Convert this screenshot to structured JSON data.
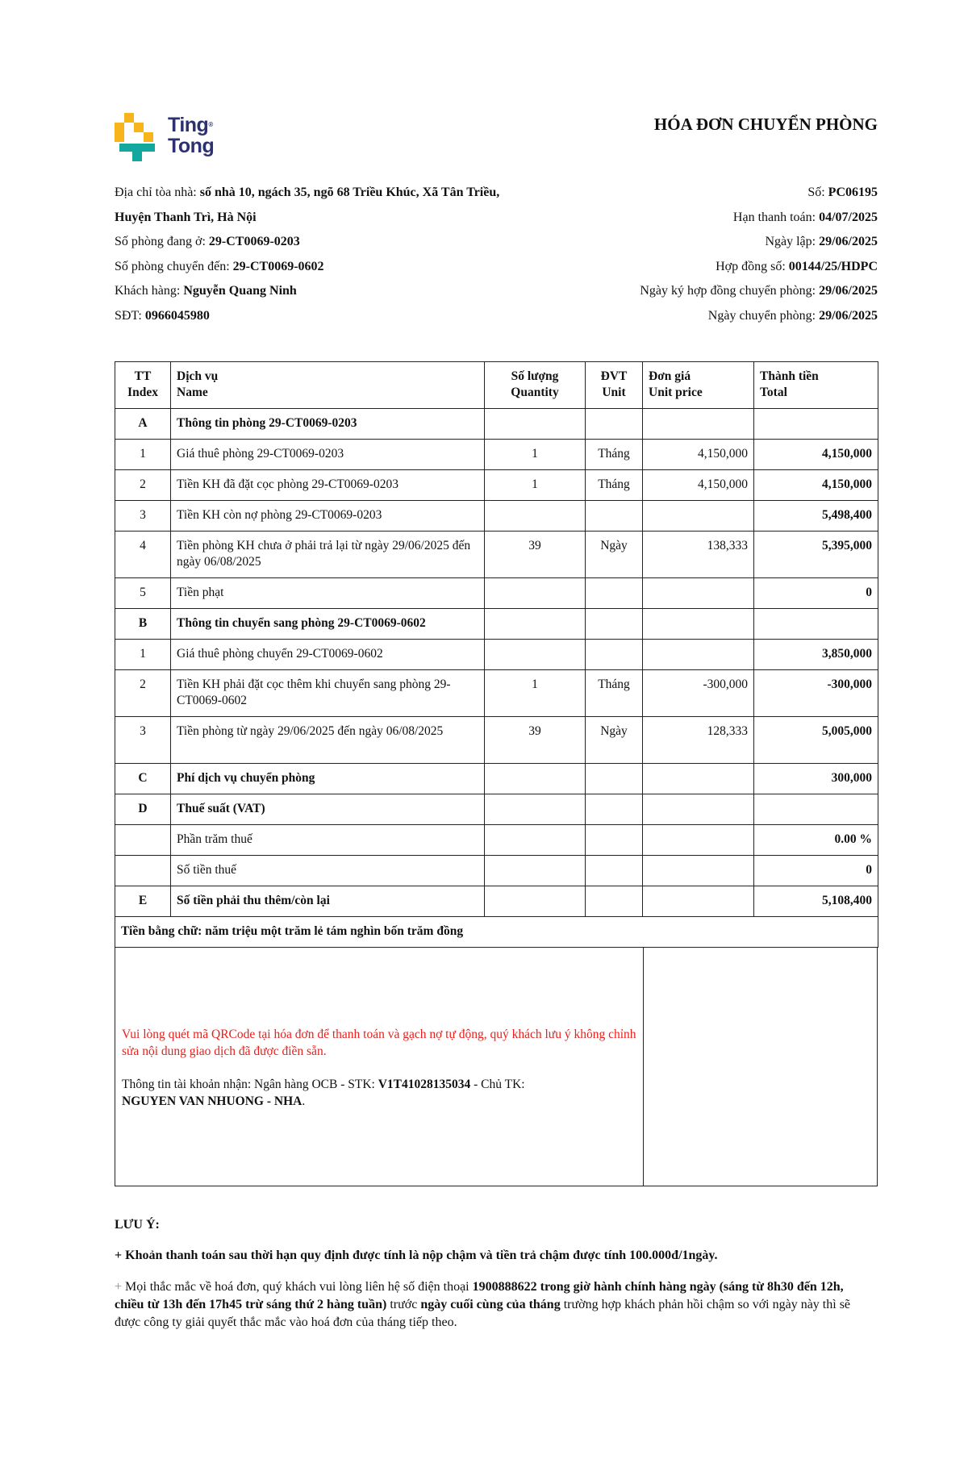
{
  "logo": {
    "line1": "Ting",
    "line2": "Tong",
    "mark": "®",
    "colors": {
      "yellow": "#f8b41b",
      "teal": "#13a89e",
      "navy": "#2e3170"
    }
  },
  "title": "HÓA ĐƠN CHUYỂN PHÒNG",
  "info_left": [
    {
      "label": "Địa chỉ tòa nhà: ",
      "value": "số nhà 10, ngách 35, ngõ 68 Triều Khúc, Xã Tân Triều, Huyện Thanh Trì, Hà Nội"
    },
    {
      "label": "Số phòng đang ở: ",
      "value": "29-CT0069-0203"
    },
    {
      "label": "Số phòng chuyển đến: ",
      "value": "29-CT0069-0602"
    },
    {
      "label": "Khách hàng: ",
      "value": "Nguyễn Quang Ninh"
    },
    {
      "label": "SĐT: ",
      "value": "0966045980"
    }
  ],
  "info_right": [
    {
      "label": "Số: ",
      "value": "PC06195"
    },
    {
      "label": "Hạn thanh toán: ",
      "value": "04/07/2025"
    },
    {
      "label": "Ngày lập: ",
      "value": "29/06/2025"
    },
    {
      "label": "Hợp đồng số: ",
      "value": "00144/25/HDPC"
    },
    {
      "label": "Ngày ký hợp đồng chuyển phòng: ",
      "value": "29/06/2025"
    },
    {
      "label": "Ngày chuyển phòng: ",
      "value": "29/06/2025"
    }
  ],
  "table": {
    "headers": [
      {
        "vi": "TT",
        "en": "Index"
      },
      {
        "vi": "Dịch vụ",
        "en": "Name"
      },
      {
        "vi": "Số lượng",
        "en": "Quantity"
      },
      {
        "vi": "ĐVT",
        "en": "Unit"
      },
      {
        "vi": "Đơn giá",
        "en": "Unit price"
      },
      {
        "vi": "Thành tiền",
        "en": "Total"
      }
    ],
    "rows": [
      {
        "idx": "A",
        "name": "Thông tin phòng 29-CT0069-0203",
        "qty": "",
        "unit": "",
        "price": "",
        "total": "",
        "section": true
      },
      {
        "idx": "1",
        "name": "Giá thuê phòng 29-CT0069-0203",
        "qty": "1",
        "unit": "Tháng",
        "price": "4,150,000",
        "total": "4,150,000"
      },
      {
        "idx": "2",
        "name": "Tiền KH đã đặt cọc phòng 29-CT0069-0203",
        "qty": "1",
        "unit": "Tháng",
        "price": "4,150,000",
        "total": "4,150,000"
      },
      {
        "idx": "3",
        "name": "Tiền KH còn nợ phòng 29-CT0069-0203",
        "qty": "",
        "unit": "",
        "price": "",
        "total": "5,498,400"
      },
      {
        "idx": "4",
        "name": "Tiền phòng KH chưa ở phải trả lại từ ngày 29/06/2025 đến ngày 06/08/2025",
        "qty": "39",
        "unit": "Ngày",
        "price": "138,333",
        "total": "5,395,000",
        "double": true
      },
      {
        "idx": "5",
        "name": "Tiền phạt",
        "qty": "",
        "unit": "",
        "price": "",
        "total": "0"
      },
      {
        "idx": "B",
        "name": "Thông tin chuyển sang phòng 29-CT0069-0602",
        "qty": "",
        "unit": "",
        "price": "",
        "total": "",
        "section": true
      },
      {
        "idx": "1",
        "name": "Giá thuê phòng chuyển 29-CT0069-0602",
        "qty": "",
        "unit": "",
        "price": "",
        "total": "3,850,000"
      },
      {
        "idx": "2",
        "name": "Tiền KH phải đặt cọc thêm khi chuyển sang phòng 29-CT0069-0602",
        "qty": "1",
        "unit": "Tháng",
        "price": "-300,000",
        "total": "-300,000",
        "double": true
      },
      {
        "idx": "3",
        "name": "Tiền phòng từ ngày 29/06/2025 đến ngày 06/08/2025",
        "qty": "39",
        "unit": "Ngày",
        "price": "128,333",
        "total": "5,005,000",
        "double": true
      },
      {
        "idx": "C",
        "name": "Phí dịch vụ chuyển phòng",
        "qty": "",
        "unit": "",
        "price": "",
        "total": "300,000",
        "section": true
      },
      {
        "idx": "D",
        "name": "Thuế suất (VAT)",
        "qty": "",
        "unit": "",
        "price": "",
        "total": "",
        "section": true
      },
      {
        "idx": "",
        "name": "Phần trăm thuế",
        "qty": "",
        "unit": "",
        "price": "",
        "total": "0.00 %"
      },
      {
        "idx": "",
        "name": "Số tiền thuế",
        "qty": "",
        "unit": "",
        "price": "",
        "total": "0"
      },
      {
        "idx": "E",
        "name": "Số tiền phải thu thêm/còn lại",
        "qty": "",
        "unit": "",
        "price": "",
        "total": "5,108,400",
        "section": true
      }
    ],
    "amount_in_words": "Tiền bằng chữ: năm triệu một trăm lẻ tám nghìn bốn trăm đồng"
  },
  "payment": {
    "qr_notice": "Vui lòng quét mã QRCode tại hóa đơn để thanh toán và gạch nợ tự động, quý khách lưu ý không chỉnh sửa nội dung giao dịch đã được điền sẵn.",
    "bank_prefix": "Thông tin tài khoản nhận: Ngân hàng OCB - STK: ",
    "account_no": "V1T41028135034",
    "holder_label": " - Chủ TK: ",
    "holder": "NGUYEN VAN NHUONG - NHA",
    "end": ".",
    "notice_color": "#e8201d"
  },
  "notes": {
    "heading": "LƯU Ý:",
    "note1": "+ Khoản thanh toán sau thời hạn quy định được tính là nộp chậm và tiền trả chậm được tính 100.000đ/1ngày.",
    "note2_a": "+ ",
    "note2_b": "Mọi thắc mắc về hoá đơn, quý khách vui lòng liên hệ số điện thoại ",
    "note2_c": "1900888622 trong giờ hành chính hàng ngày (sáng từ 8h30 đến 12h, chiều từ 13h đến 17h45 trừ sáng thứ 2 hàng tuần)",
    "note2_d": " trước ",
    "note2_e": "ngày cuối cùng của tháng",
    "note2_f": " trường hợp khách phản hồi chậm so với ngày này thì sẽ được công ty giải quyết thắc mắc vào hoá đơn của tháng tiếp theo."
  }
}
